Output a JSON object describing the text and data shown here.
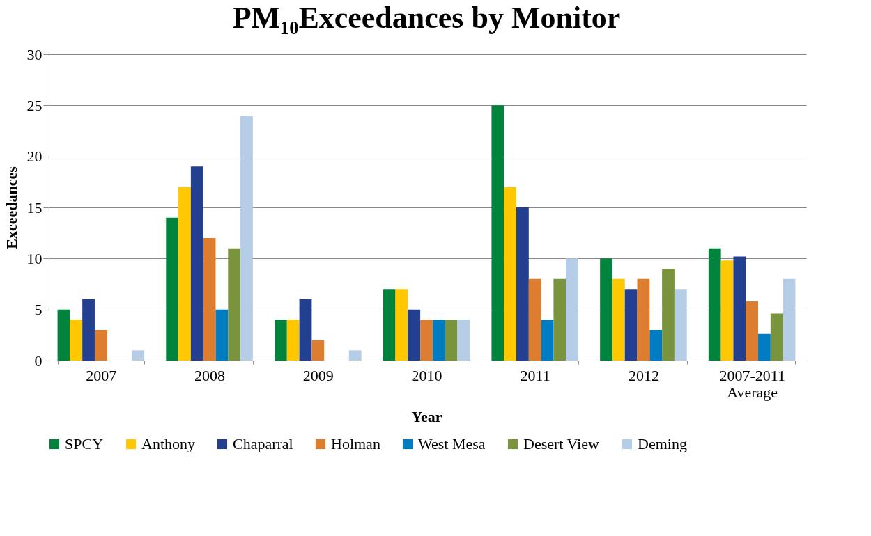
{
  "chart_data": {
    "type": "bar",
    "title": "PM₁₀Exceedances by Monitor",
    "xlabel": "Year",
    "ylabel": "Exceedances",
    "categories": [
      "2007",
      "2008",
      "2009",
      "2010",
      "2011",
      "2012",
      "2007-2011 Average"
    ],
    "series": [
      {
        "name": "SPCY",
        "color": "#00843d",
        "values": [
          5,
          14,
          4,
          7,
          25,
          10,
          11
        ]
      },
      {
        "name": "Anthony",
        "color": "#ffc800",
        "values": [
          4,
          17,
          4,
          7,
          17,
          8,
          9.8
        ]
      },
      {
        "name": "Chaparral",
        "color": "#233f8f",
        "values": [
          6,
          19,
          6,
          5,
          15,
          7,
          10.2
        ]
      },
      {
        "name": "Holman",
        "color": "#dd7d2f",
        "values": [
          3,
          12,
          2,
          4,
          8,
          8,
          5.8
        ]
      },
      {
        "name": "West Mesa",
        "color": "#007cc3",
        "values": [
          null,
          5,
          null,
          4,
          4,
          3,
          2.6
        ]
      },
      {
        "name": "Desert View",
        "color": "#7a943d",
        "values": [
          null,
          11,
          null,
          4,
          8,
          9,
          4.6
        ]
      },
      {
        "name": "Deming",
        "color": "#b6cde8",
        "values": [
          1,
          24,
          1,
          4,
          10,
          7,
          8
        ]
      }
    ],
    "ylim": [
      0,
      30
    ],
    "yticks": [
      0,
      5,
      10,
      15,
      20,
      25,
      30
    ],
    "grid": "y",
    "legend": "bottom"
  }
}
